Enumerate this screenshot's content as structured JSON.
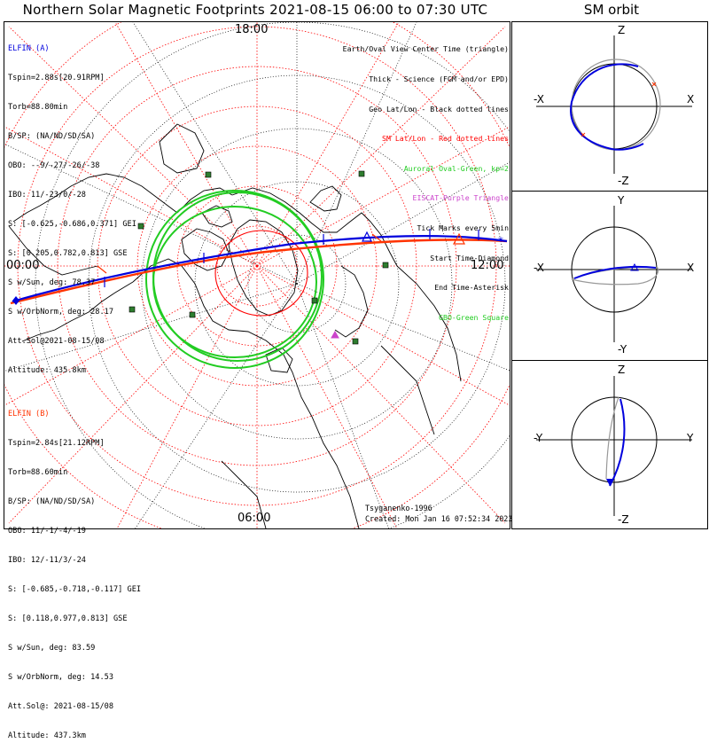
{
  "title": "Northern Solar Magnetic Footprints 2021-08-15 06:00 to 07:30 UTC",
  "orbit_title": "SM orbit",
  "hour_labels": {
    "top": "18:00",
    "left": "00:00",
    "right": "12:00",
    "bottom": "06:00"
  },
  "elfin_a": {
    "name": "ELFIN (A)",
    "color": "#0000dd",
    "lines": [
      "Tspin=2.88s[20.91RPM]",
      "Torb=88.80min",
      "B/SP: (NA/ND/SD/SA)",
      "OBO: --9/-27/-26/-38",
      "IBO: 11/-23/0/-28",
      "S: [-0.625,-0.686,0.371] GEI",
      "S: [0.205,0.782,0.813] GSE",
      "S w/Sun, deg: 78.37",
      "S w/OrbNorm, deg: 28.17",
      "Att.Sol@2021-08-15/08",
      "Altitude: 435.8km"
    ]
  },
  "elfin_b": {
    "name": "ELFIN (B)",
    "color": "#ff3300",
    "lines": [
      "Tspin=2.84s[21.12RPM]",
      "Torb=88.60min",
      "B/SP: (NA/ND/SD/SA)",
      "OBO: 11/-1/-4/-19",
      "IBO: 12/-11/3/-24",
      "S: [-0.685,-0.718,-0.117] GEI",
      "S: [0.118,0.977,0.813] GSE",
      "S w/Sun, deg: 83.59",
      "S w/OrbNorm, deg: 14.53",
      "Att.Sol@: 2021-08-15/08",
      "Altitude: 437.3km"
    ]
  },
  "legend": [
    {
      "text": "Earth/Oval View Center Time (triangle)",
      "color": "#000000"
    },
    {
      "text": "Thick - Science (FGM and/or EPD)",
      "color": "#000000"
    },
    {
      "text": "Geo Lat/Lon - Black dotted lines",
      "color": "#000000"
    },
    {
      "text": "SM Lat/Lon - Red dotted lines",
      "color": "#ff0000"
    },
    {
      "text": "Auroral Oval-Green, kp=2",
      "color": "#22cc22"
    },
    {
      "text": "EISCAT-Purple Triangle",
      "color": "#cc44cc"
    },
    {
      "text": "Tick Marks every 5min",
      "color": "#000000"
    },
    {
      "text": "Start Time-Diamond",
      "color": "#000000"
    },
    {
      "text": "End Time-Asterisk",
      "color": "#000000"
    },
    {
      "text": "GBO-Green Square",
      "color": "#22cc22"
    }
  ],
  "credits": {
    "author": "Tsyganenko-1996",
    "created": "Created: Mon Jan 16 07:52:34 2023"
  },
  "orbit_panels": [
    {
      "top": "Z",
      "bottom": "-Z",
      "left": "-X",
      "right": "X"
    },
    {
      "top": "Y",
      "bottom": "-Y",
      "left": "-X",
      "right": "X"
    },
    {
      "top": "Z",
      "bottom": "-Z",
      "left": "-Y",
      "right": "Y"
    }
  ],
  "colors": {
    "track_a": "#0000dd",
    "track_b": "#ff3300",
    "oval": "#22cc22",
    "sm_grid": "#ff0000",
    "gbo": "#2e7d2e"
  }
}
